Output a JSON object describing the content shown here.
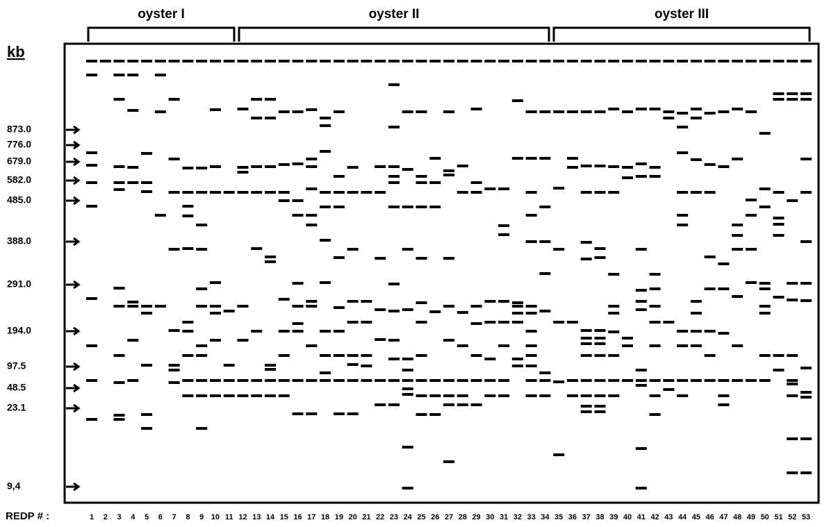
{
  "header": {
    "group_labels": [
      "oyster I",
      "oyster II",
      "oyster III"
    ],
    "axis_unit": "kb"
  },
  "markers": [
    "873.0",
    "776.0",
    "679.0",
    "582.0",
    "485.0",
    "388.0",
    "291.0",
    "194.0",
    "97.5",
    "48.5",
    "23.1",
    "9,4"
  ],
  "footer": {
    "label": "REDP # :",
    "lanes": [
      "1",
      "2",
      "3",
      "4",
      "5",
      "6",
      "7",
      "8",
      "9",
      "10",
      "11",
      "12",
      "13",
      "14",
      "15",
      "16",
      "17",
      "18",
      "19",
      "20",
      "21",
      "22",
      "23",
      "24",
      "25",
      "26",
      "27",
      "28",
      "29",
      "30",
      "31",
      "32",
      "33",
      "34",
      "35",
      "36",
      "37",
      "38",
      "39",
      "40",
      "41",
      "42",
      "43",
      "44",
      "45",
      "46",
      "47",
      "48",
      "49",
      "50",
      "51",
      "52",
      "53"
    ]
  }
}
